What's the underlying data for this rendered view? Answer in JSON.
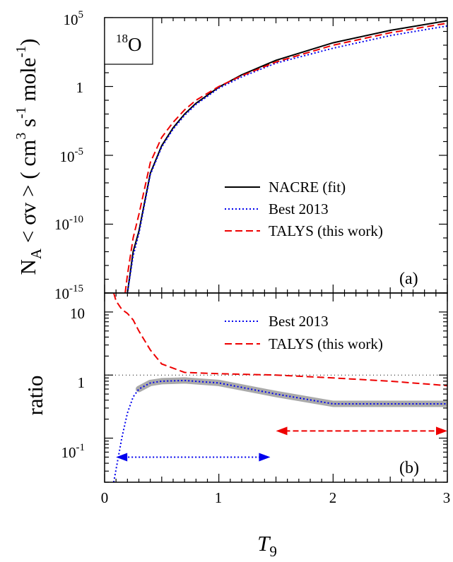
{
  "chart_data": [
    {
      "panel": "(a)",
      "type": "line",
      "isotope_label": {
        "sup": "18",
        "base": "O"
      },
      "ylabel": {
        "prefix": "N",
        "prefix_sub": "A",
        "main": " < σv > ( cm",
        "sup1": "3",
        "mid1": " s",
        "sup2": "-1",
        "mid2": " mole",
        "sup3": "-1",
        "suffix": ")"
      },
      "y_scale": "log",
      "ylim": [
        1e-15,
        100000
      ],
      "xlim": [
        0,
        3
      ],
      "yticks": [
        {
          "value": 1e-15,
          "base": "10",
          "exp": "-15"
        },
        {
          "value": 1e-10,
          "base": "10",
          "exp": "-10"
        },
        {
          "value": 1e-05,
          "base": "10",
          "exp": "-5"
        },
        {
          "value": 1,
          "base": "1",
          "exp": ""
        },
        {
          "value": 100000,
          "base": "10",
          "exp": "5"
        }
      ],
      "legend_position": "lower-right",
      "series": [
        {
          "name": "NACRE (fit)",
          "color": "#000000",
          "dash": "solid",
          "x": [
            0.2,
            0.25,
            0.3,
            0.4,
            0.5,
            0.6,
            0.7,
            0.8,
            1.0,
            1.2,
            1.5,
            2.0,
            2.5,
            3.0
          ],
          "y": [
            1e-15,
            1e-12,
            3e-11,
            5e-07,
            5e-05,
            0.001,
            0.01,
            0.06,
            0.9,
            7,
            80,
            1500,
            12000,
            60000
          ]
        },
        {
          "name": "Best 2013",
          "color": "#0000ee",
          "dash": "dotted",
          "x": [
            0.2,
            0.25,
            0.3,
            0.4,
            0.5,
            0.6,
            0.7,
            0.8,
            1.0,
            1.2,
            1.5,
            2.0,
            2.5,
            3.0
          ],
          "y": [
            1e-15,
            5e-13,
            2e-11,
            4e-07,
            4e-05,
            0.0008,
            0.008,
            0.05,
            0.75,
            5,
            50,
            600,
            5000,
            25000
          ]
        },
        {
          "name": "TALYS (this work)",
          "color": "#ee0000",
          "dash": "dashed",
          "x": [
            0.18,
            0.2,
            0.25,
            0.3,
            0.4,
            0.5,
            0.6,
            0.7,
            0.8,
            1.0,
            1.2,
            1.5,
            2.0,
            2.5,
            3.0
          ],
          "y": [
            1e-15,
            2e-14,
            1e-11,
            5e-10,
            3e-06,
            0.0002,
            0.0025,
            0.02,
            0.1,
            1.0,
            6,
            60,
            1000,
            8000,
            40000
          ]
        }
      ]
    },
    {
      "panel": "(b)",
      "type": "line",
      "ylabel": "ratio",
      "xlabel": {
        "base": "T",
        "sub": "9"
      },
      "y_scale": "log",
      "ylim": [
        0.02,
        20
      ],
      "xlim": [
        0,
        3
      ],
      "xticks": [
        {
          "value": 0,
          "label": "0"
        },
        {
          "value": 1,
          "label": "1"
        },
        {
          "value": 2,
          "label": "2"
        },
        {
          "value": 3,
          "label": "3"
        }
      ],
      "yticks": [
        {
          "value": 0.1,
          "base": "10",
          "exp": "-1"
        },
        {
          "value": 1,
          "base": "1",
          "exp": ""
        },
        {
          "value": 10,
          "base": "10",
          "exp": ""
        }
      ],
      "reference_line": 1,
      "legend_position": "upper-right",
      "uncertainty_band": {
        "color": "#aaaaaa",
        "x": [
          0.3,
          0.4,
          0.5,
          0.7,
          1.0,
          1.5,
          2.0,
          2.5,
          3.0
        ],
        "y": [
          0.6,
          0.75,
          0.8,
          0.82,
          0.75,
          0.5,
          0.35,
          0.35,
          0.35
        ]
      },
      "series": [
        {
          "name": "Best 2013",
          "color": "#0000ee",
          "dash": "dotted",
          "x": [
            0.08,
            0.12,
            0.15,
            0.2,
            0.25,
            0.3,
            0.4,
            0.5,
            0.7,
            1.0,
            1.5,
            2.0,
            2.5,
            3.0
          ],
          "y": [
            0.02,
            0.05,
            0.1,
            0.25,
            0.45,
            0.6,
            0.75,
            0.8,
            0.82,
            0.75,
            0.5,
            0.35,
            0.35,
            0.35
          ]
        },
        {
          "name": "TALYS (this work)",
          "color": "#ee0000",
          "dash": "dashed",
          "x": [
            0.08,
            0.1,
            0.15,
            0.2,
            0.25,
            0.3,
            0.4,
            0.5,
            0.7,
            1.0,
            1.5,
            2.0,
            2.5,
            3.0
          ],
          "y": [
            20,
            15,
            11,
            9.5,
            7.5,
            5,
            2.5,
            1.5,
            1.1,
            1.05,
            1.0,
            0.9,
            0.8,
            0.68
          ]
        }
      ],
      "range_arrows": [
        {
          "color": "#0000ee",
          "x": [
            0.1,
            1.45
          ],
          "y": 0.05
        },
        {
          "color": "#ee0000",
          "x": [
            1.5,
            3.0
          ],
          "y": 0.13
        }
      ]
    }
  ]
}
